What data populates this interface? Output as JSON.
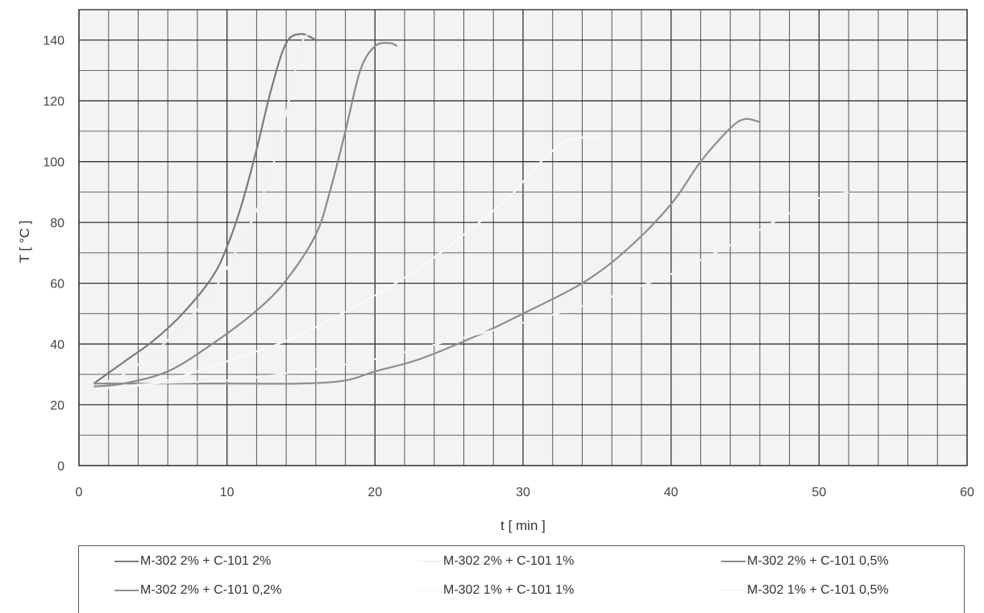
{
  "chart_data": {
    "type": "line",
    "xlabel": "t [ min ]",
    "ylabel": "T [ °C ]",
    "xlim": [
      0,
      60
    ],
    "ylim": [
      0,
      150
    ],
    "xticks": [
      0,
      10,
      20,
      30,
      40,
      50,
      60
    ],
    "yticks": [
      0,
      20,
      40,
      60,
      80,
      100,
      120,
      140
    ],
    "grid": true,
    "legend_position": "bottom",
    "series": [
      {
        "name": "M-302 2% + C-101 2%",
        "color": "#7a7a7a",
        "x": [
          1,
          3,
          5,
          7,
          9,
          10,
          11,
          12,
          13,
          14,
          15,
          16
        ],
        "y": [
          27,
          34,
          41,
          50,
          62,
          72,
          86,
          104,
          124,
          139,
          142,
          140
        ]
      },
      {
        "name": "M-302 2% + C-101 1%",
        "color": "#f2f2f2",
        "x": [
          1,
          3,
          5,
          7,
          9,
          10,
          11,
          12,
          13,
          14,
          15,
          15.5
        ],
        "y": [
          26,
          30,
          37,
          46,
          57,
          65,
          74,
          84,
          97,
          116,
          138,
          142
        ]
      },
      {
        "name": "M-302 2% + C-101 0,5%",
        "color": "#8a8a8a",
        "x": [
          1,
          3,
          6,
          9,
          12,
          14,
          16,
          17,
          18,
          19,
          20,
          21,
          21.5
        ],
        "y": [
          26,
          27,
          31,
          40,
          51,
          61,
          76,
          91,
          110,
          130,
          138,
          139,
          138
        ]
      },
      {
        "name": "M-302 2% + C-101 0,2%",
        "color": "#8e8e8e",
        "x": [
          1,
          5,
          10,
          15,
          18,
          20,
          23,
          27,
          30,
          34,
          37,
          40,
          42,
          44,
          45,
          46
        ],
        "y": [
          27,
          27,
          27,
          27,
          28,
          31,
          35,
          43,
          50,
          60,
          71,
          86,
          100,
          111,
          114,
          113
        ]
      },
      {
        "name": "M-302 1% + C-101 1%",
        "color": "#fafafa",
        "x": [
          1,
          5,
          8,
          11,
          14,
          17,
          20,
          23,
          26,
          29,
          31,
          33,
          35
        ],
        "y": [
          25,
          27,
          31,
          36,
          41,
          48,
          56,
          65,
          76,
          88,
          99,
          107,
          108
        ]
      },
      {
        "name": "M-302 1% + C-101 0,5%",
        "color": "#f4f4f4",
        "x": [
          1,
          5,
          10,
          15,
          20,
          25,
          30,
          35,
          40,
          45,
          48,
          50,
          52
        ],
        "y": [
          25,
          27,
          28,
          31,
          35,
          41,
          47,
          54,
          63,
          75,
          83,
          88,
          90
        ]
      }
    ]
  }
}
